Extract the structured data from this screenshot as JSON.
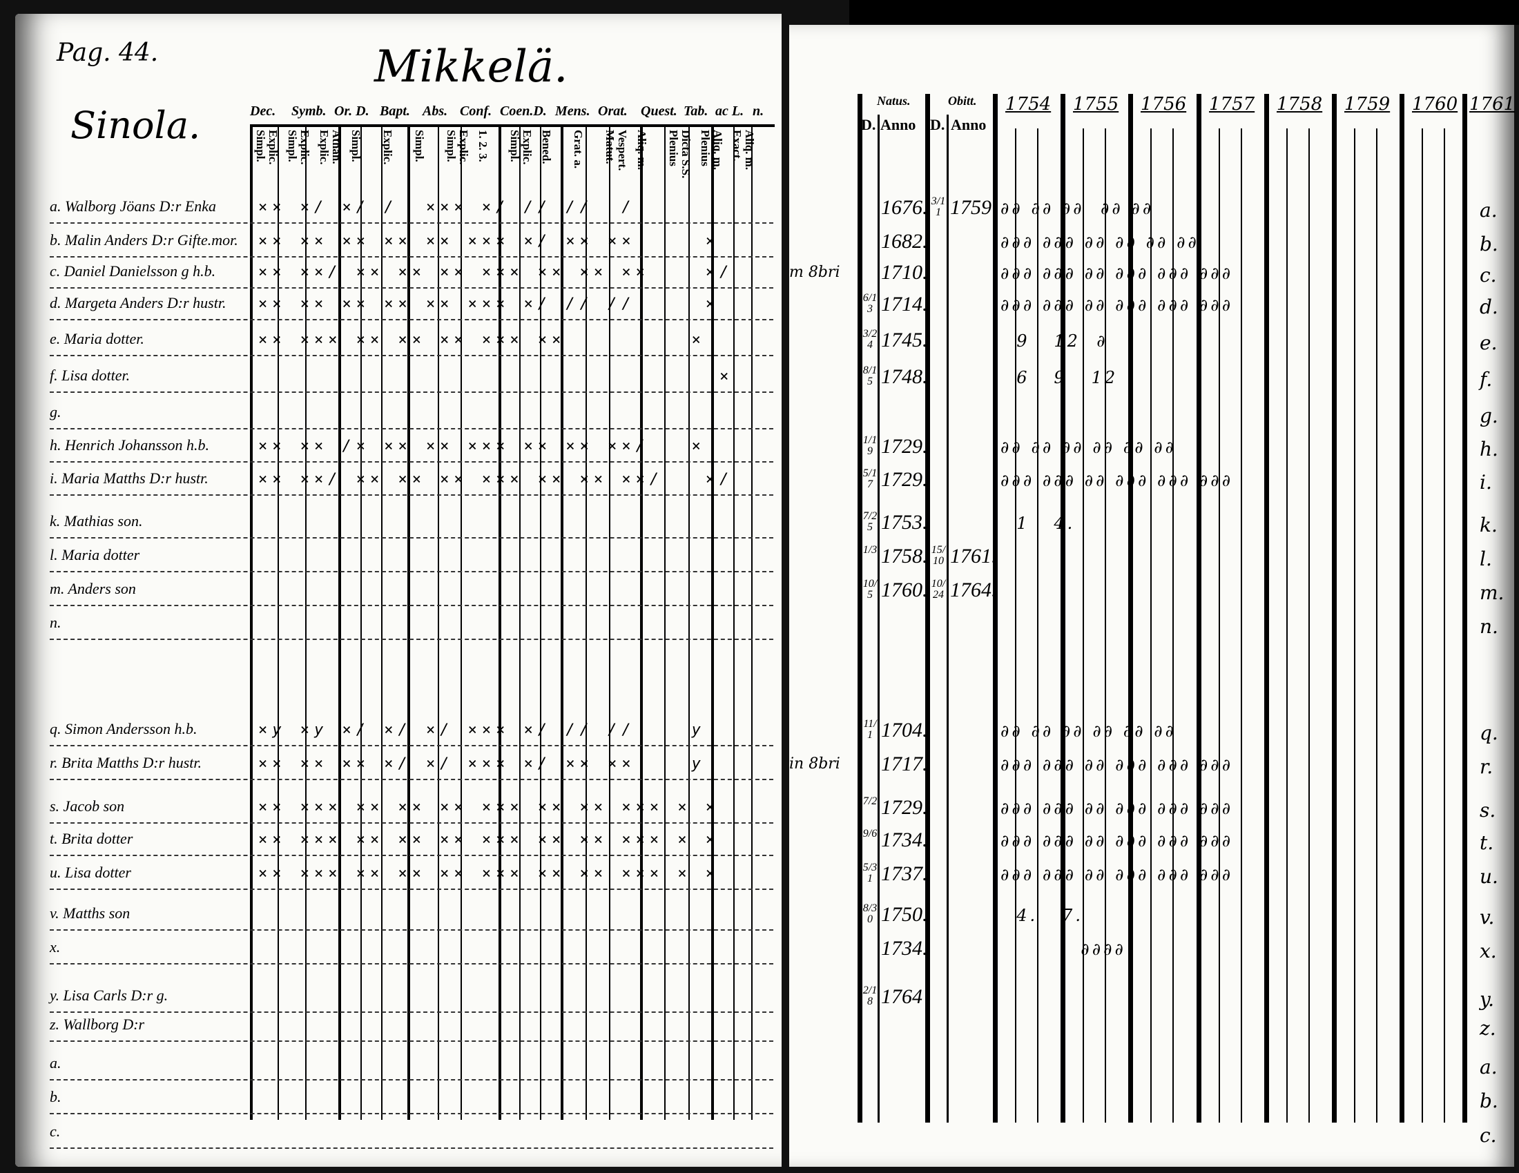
{
  "left_page": {
    "page_ref": "Pag. 44.",
    "title": "Mikkelä.",
    "village": "Sinola.",
    "headers": [
      "Dec.",
      "Symb.",
      "Or. D.",
      "Bapt.",
      "Abs.",
      "Conf.",
      "Coen.D.",
      "Mens.",
      "Orat.",
      "Quest.",
      "Tab.",
      "ac L.",
      "n."
    ],
    "subheaders": [
      "Explic. Simpl.",
      "Explic. Simpl.",
      "Athan. Explic.",
      "Simpl.",
      "Explic.",
      "Simpl.",
      "Explic. Simpl.",
      "1. 2. 3.",
      "Explic. Simpl.",
      "Bened.",
      "Grat. a.",
      "Vespert. Matut.",
      "Aliq. m.",
      "Dicta S.S. Plenius",
      "Aliq. m. Plenius",
      "Aliq. m. Exact."
    ],
    "rows": [
      {
        "name": "a. Walborg Jöans D:r Enka",
        "marks": "×× ×/ ×/ /  ××× ×/ // //  /"
      },
      {
        "name": "b. Malin Anders D:r Gifte.mor.",
        "marks": "×× ×× ×× ×× ×× ××× ×/ ×× ××     ×"
      },
      {
        "name": "c. Daniel Danielsson g h.b.",
        "marks": "×× ××/ ×× ×× ×× ××× ×× ×× ××    ×/"
      },
      {
        "name": "d. Margeta Anders D:r hustr.",
        "marks": "×× ×× ×× ×× ×× ××× ×/ // //     ×"
      },
      {
        "name": "e. Maria dotter.",
        "marks": "×× ××× ×× ×× ×× ××× ××         ×"
      },
      {
        "name": "f. Lisa dotter.",
        "marks": "                                 ×"
      },
      {
        "name": "g.",
        "marks": ""
      },
      {
        "name": "h. Henrich Johansson h.b.",
        "marks": "×× ×× /× ×× ×× ××× ×× ×× ××/   ×"
      },
      {
        "name": "i. Maria Matths D:r hustr.",
        "marks": "×× ××/ ×× ×× ×× ××× ×× ×× ××/   ×/"
      },
      {
        "name": "k. Mathias son.",
        "marks": ""
      },
      {
        "name": "l. Maria dotter",
        "marks": ""
      },
      {
        "name": "m. Anders son",
        "marks": ""
      },
      {
        "name": "n.",
        "marks": ""
      },
      {
        "name": "q. Simon Andersson h.b.",
        "marks": "×y ×y ×/ ×/ ×/ ××× ×/ // //    y"
      },
      {
        "name": "r. Brita Matths D:r hustr.",
        "marks": "×× ×× ×× ×/ ×/ ××× ×/ ×× ××    y"
      },
      {
        "name": "s. Jacob son",
        "marks": "×× ××× ×× ×× ×× ××× ×× ×× ××× × ×"
      },
      {
        "name": "t. Brita dotter",
        "marks": "×× ××× ×× ×× ×× ××× ×× ×× ××× × ×"
      },
      {
        "name": "u. Lisa dotter",
        "marks": "×× ××× ×× ×× ×× ××× ×× ×× ××× × ×"
      },
      {
        "name": "v. Matths son",
        "marks": ""
      },
      {
        "name": "x.",
        "marks": ""
      },
      {
        "name": "y. Lisa Carls D:r g.",
        "marks": ""
      },
      {
        "name": "z. Wallborg D:r",
        "marks": ""
      },
      {
        "name": "a.",
        "marks": ""
      },
      {
        "name": "b.",
        "marks": ""
      },
      {
        "name": "c.",
        "marks": ""
      }
    ]
  },
  "right_page": {
    "natus_label": "Natus.",
    "obitus_label": "Obitt.",
    "d_label": "D.",
    "anno_label": "Anno",
    "years": [
      "1754",
      "1755",
      "1756",
      "1757",
      "1758",
      "1759",
      "1760",
      "1761"
    ],
    "rows": [
      {
        "margin": "",
        "d": "",
        "anno": "1676.",
        "ob_d": "3/11",
        "ob_anno": "1759",
        "marks": "∂∂ ∂∂ ∂∂  ∂∂ ∂∂",
        "letter": "a."
      },
      {
        "margin": "",
        "d": "",
        "anno": "1682.",
        "ob_d": "",
        "ob_anno": "",
        "marks": "∂∂∂ ∂∂∂ ∂∂ ∂∂ ∂∂ ∂∂",
        "letter": "b."
      },
      {
        "margin": "m 8bri",
        "d": "",
        "anno": "1710.",
        "ob_d": "",
        "ob_anno": "",
        "marks": "∂∂∂ ∂∂∂ ∂∂ ∂∂∂ ∂∂∂ ∂∂∂",
        "letter": "c."
      },
      {
        "margin": "",
        "d": "6/13",
        "anno": "1714.",
        "ob_d": "",
        "ob_anno": "",
        "marks": "∂∂∂ ∂∂∂ ∂∂ ∂∂∂ ∂∂∂ ∂∂∂",
        "letter": "d."
      },
      {
        "margin": "",
        "d": "3/24",
        "anno": "1745.",
        "ob_d": "",
        "ob_anno": "",
        "marks": "  9   12  ∂",
        "letter": "e."
      },
      {
        "margin": "",
        "d": "8/15",
        "anno": "1748.",
        "ob_d": "",
        "ob_anno": "",
        "marks": "  6   9   12",
        "letter": "f."
      },
      {
        "margin": "",
        "d": "",
        "anno": "",
        "ob_d": "",
        "ob_anno": "",
        "marks": "",
        "letter": "g."
      },
      {
        "margin": "",
        "d": "1/19",
        "anno": "1729.",
        "ob_d": "",
        "ob_anno": "",
        "marks": "∂∂ ∂∂ ∂∂ ∂∂ ∂∂ ∂∂",
        "letter": "h."
      },
      {
        "margin": "",
        "d": "5/17",
        "anno": "1729.",
        "ob_d": "",
        "ob_anno": "",
        "marks": "∂∂∂ ∂∂∂ ∂∂ ∂∂∂ ∂∂∂ ∂∂∂",
        "letter": "i."
      },
      {
        "margin": "",
        "d": "7/25",
        "anno": "1753.",
        "ob_d": "",
        "ob_anno": "",
        "marks": "  1   4.",
        "letter": "k."
      },
      {
        "margin": "",
        "d": "1/3",
        "anno": "1758.",
        "ob_d": "15/10",
        "ob_anno": "1761.",
        "marks": "",
        "letter": "l."
      },
      {
        "margin": "",
        "d": "10/5",
        "anno": "1760.",
        "ob_d": "10/24",
        "ob_anno": "1764.",
        "marks": "",
        "letter": "m."
      },
      {
        "margin": "",
        "d": "",
        "anno": "",
        "ob_d": "",
        "ob_anno": "",
        "marks": "",
        "letter": "n."
      },
      {
        "margin": "",
        "d": "11/1",
        "anno": "1704.",
        "ob_d": "",
        "ob_anno": "",
        "marks": "∂∂ ∂∂ ∂∂ ∂∂ ∂∂ ∂∂",
        "letter": "q."
      },
      {
        "margin": "in 8bri",
        "d": "",
        "anno": "1717.",
        "ob_d": "",
        "ob_anno": "",
        "marks": "∂∂∂ ∂∂∂ ∂∂ ∂∂∂ ∂∂∂ ∂∂∂",
        "letter": "r."
      },
      {
        "margin": "",
        "d": "7/2",
        "anno": "1729.",
        "ob_d": "",
        "ob_anno": "",
        "marks": "∂∂∂ ∂∂∂ ∂∂ ∂∂∂ ∂∂∂ ∂∂∂",
        "letter": "s."
      },
      {
        "margin": "",
        "d": "9/6",
        "anno": "1734.",
        "ob_d": "",
        "ob_anno": "",
        "marks": "∂∂∂ ∂∂∂ ∂∂ ∂∂∂ ∂∂∂ ∂∂∂",
        "letter": "t."
      },
      {
        "margin": "",
        "d": "5/31",
        "anno": "1737.",
        "ob_d": "",
        "ob_anno": "",
        "marks": "∂∂∂ ∂∂∂ ∂∂ ∂∂∂ ∂∂∂ ∂∂∂",
        "letter": "u."
      },
      {
        "margin": "",
        "d": "8/30",
        "anno": "1750.",
        "ob_d": "",
        "ob_anno": "",
        "marks": "  4.   7.",
        "letter": "v."
      },
      {
        "margin": "",
        "d": "",
        "anno": "1734.",
        "ob_d": "",
        "ob_anno": "",
        "marks": "          ∂∂∂∂",
        "letter": "x."
      },
      {
        "margin": "",
        "d": "2/18",
        "anno": "1764",
        "ob_d": "",
        "ob_anno": "",
        "marks": "",
        "letter": "y."
      },
      {
        "margin": "",
        "d": "",
        "anno": "",
        "ob_d": "",
        "ob_anno": "",
        "marks": "",
        "letter": "z."
      },
      {
        "margin": "",
        "d": "",
        "anno": "",
        "ob_d": "",
        "ob_anno": "",
        "marks": "",
        "letter": "a."
      },
      {
        "margin": "",
        "d": "",
        "anno": "",
        "ob_d": "",
        "ob_anno": "",
        "marks": "",
        "letter": "b."
      },
      {
        "margin": "",
        "d": "",
        "anno": "",
        "ob_d": "",
        "ob_anno": "",
        "marks": "",
        "letter": "c."
      }
    ]
  },
  "colors": {
    "paper": "#fbfbf8",
    "ink": "#000000",
    "background": "#111111"
  }
}
